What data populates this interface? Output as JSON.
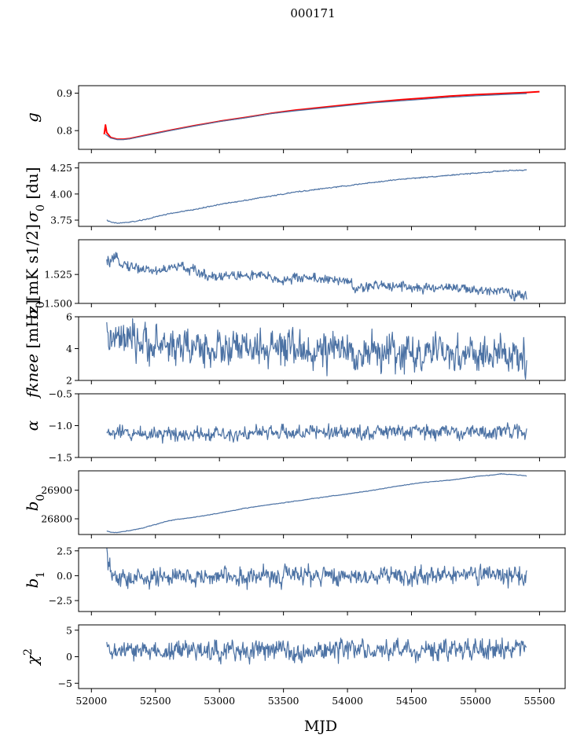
{
  "title": "000171",
  "chart_data": {
    "type": "line",
    "title": "000171",
    "xlabel": "MJD",
    "xlim": [
      51900,
      55700
    ],
    "xticks": [
      52000,
      52500,
      53000,
      53500,
      54000,
      54500,
      55000,
      55500
    ],
    "xtick_labels": [
      "52000",
      "52500",
      "53000",
      "53500",
      "54000",
      "54500",
      "55000",
      "55500"
    ],
    "line_color": "#4c72a4",
    "panels": [
      {
        "ylabel": "g",
        "ylim": [
          0.75,
          0.92
        ],
        "yticks": [
          0.8,
          0.9
        ],
        "ytick_labels": [
          "0.8",
          "0.9"
        ],
        "series": [
          {
            "color": "#ff0000",
            "x": [
              52100,
              52110,
              52120,
              52150,
              52200,
              52250,
              52300,
              52400,
              52500,
              52600,
              52800,
              53000,
              53200,
              53400,
              53600,
              53800,
              54000,
              54200,
              54400,
              54600,
              54800,
              55000,
              55200,
              55400,
              55500
            ],
            "y": [
              0.79,
              0.815,
              0.795,
              0.782,
              0.777,
              0.777,
              0.779,
              0.786,
              0.793,
              0.8,
              0.813,
              0.825,
              0.835,
              0.846,
              0.855,
              0.862,
              0.869,
              0.876,
              0.882,
              0.887,
              0.892,
              0.896,
              0.899,
              0.902,
              0.904
            ]
          },
          {
            "color": "#4c72a4",
            "x": [
              52110,
              52150,
              52200,
              52250,
              52300,
              52400,
              52500,
              52600,
              52800,
              53000,
              53200,
              53400,
              53600,
              53800,
              54000,
              54200,
              54400,
              54600,
              54800,
              55000,
              55200,
              55400
            ],
            "y": [
              0.79,
              0.78,
              0.776,
              0.776,
              0.778,
              0.785,
              0.792,
              0.799,
              0.812,
              0.824,
              0.834,
              0.845,
              0.853,
              0.86,
              0.867,
              0.874,
              0.879,
              0.884,
              0.889,
              0.893,
              0.896,
              0.899
            ]
          }
        ]
      },
      {
        "ylabel": "σ0 [du]",
        "ylim": [
          3.69,
          4.3
        ],
        "yticks": [
          3.75,
          4.0,
          4.25
        ],
        "ytick_labels": [
          "3.75",
          "4.00",
          "4.25"
        ],
        "series": [
          {
            "color": "#4c72a4",
            "x": [
              52120,
              52150,
              52200,
              52300,
              52400,
              52500,
              52600,
              52700,
              52800,
              53000,
              53200,
              53400,
              53600,
              53800,
              54000,
              54200,
              54400,
              54600,
              54800,
              55000,
              55200,
              55400
            ],
            "y": [
              3.75,
              3.73,
              3.72,
              3.73,
              3.75,
              3.78,
              3.81,
              3.83,
              3.85,
              3.9,
              3.94,
              3.98,
              4.02,
              4.05,
              4.08,
              4.11,
              4.14,
              4.16,
              4.18,
              4.2,
              4.22,
              4.23
            ],
            "noise": 0.004
          }
        ]
      },
      {
        "ylabel": "σ0[mK s1/2]",
        "ylim": [
          1.5,
          1.555
        ],
        "yticks": [
          1.5,
          1.525
        ],
        "ytick_labels": [
          "1.500",
          "1.525"
        ],
        "series": [
          {
            "color": "#4c72a4",
            "x": [
              52120,
              52200,
              52300,
              52500,
              52700,
              52900,
              53100,
              53300,
              53500,
              53700,
              53900,
              54000,
              54050,
              54200,
              54400,
              54600,
              54800,
              55000,
              55200,
              55300,
              55400
            ],
            "y": [
              1.535,
              1.538,
              1.532,
              1.528,
              1.532,
              1.524,
              1.524,
              1.524,
              1.52,
              1.523,
              1.519,
              1.521,
              1.512,
              1.515,
              1.516,
              1.512,
              1.515,
              1.51,
              1.513,
              1.508,
              1.505
            ],
            "noise": 0.0035
          }
        ]
      },
      {
        "ylabel": "fknee [mHz]",
        "ylim": [
          2,
          6
        ],
        "yticks": [
          2,
          4,
          6
        ],
        "ytick_labels": [
          "2",
          "4",
          "6"
        ],
        "series": [
          {
            "color": "#4c72a4",
            "x": [
              52120,
              52300,
              52600,
              53000,
              53500,
              54000,
              54500,
              55000,
              55400
            ],
            "y": [
              4.6,
              4.4,
              4.2,
              4.0,
              3.9,
              3.8,
              3.7,
              3.6,
              3.5
            ],
            "noise": 0.9
          }
        ]
      },
      {
        "ylabel": "α",
        "ylim": [
          -1.5,
          -0.5
        ],
        "yticks": [
          -1.5,
          -1.0,
          -0.5
        ],
        "ytick_labels": [
          "−1.5",
          "−1.0",
          "−0.5"
        ],
        "series": [
          {
            "color": "#4c72a4",
            "x": [
              52120,
              53000,
              54000,
              55000,
              55400
            ],
            "y": [
              -1.12,
              -1.12,
              -1.1,
              -1.1,
              -1.1
            ],
            "noise": 0.09
          }
        ]
      },
      {
        "ylabel": "b0",
        "ylim": [
          26745,
          26968
        ],
        "yticks": [
          26800,
          26900
        ],
        "ytick_labels": [
          "26800",
          "26900"
        ],
        "series": [
          {
            "color": "#4c72a4",
            "x": [
              52120,
              52150,
              52200,
              52300,
              52400,
              52500,
              52600,
              52700,
              52800,
              53000,
              53200,
              53400,
              53600,
              53800,
              54000,
              54200,
              54400,
              54600,
              54800,
              55000,
              55100,
              55200,
              55300,
              55400
            ],
            "y": [
              26757,
              26753,
              26752,
              26759,
              26768,
              26780,
              26793,
              26800,
              26805,
              26820,
              26837,
              26850,
              26862,
              26875,
              26887,
              26900,
              26915,
              26928,
              26935,
              26948,
              26952,
              26957,
              26955,
              26950
            ],
            "noise": 0.9
          }
        ]
      },
      {
        "ylabel": "b1",
        "ylim": [
          -3.6,
          2.8
        ],
        "yticks": [
          -2.5,
          0.0,
          2.5
        ],
        "ytick_labels": [
          "−2.5",
          "0.0",
          "2.5"
        ],
        "series": [
          {
            "color": "#4c72a4",
            "x": [
              52120,
              52130,
              52160,
              52200,
              52300,
              52500,
              53000,
              53500,
              54000,
              54500,
              55000,
              55400
            ],
            "y": [
              2.2,
              1.0,
              0.1,
              -0.4,
              -0.3,
              -0.2,
              -0.1,
              0.0,
              0.0,
              0.0,
              0.0,
              0.0
            ],
            "noise": 0.75
          }
        ]
      },
      {
        "ylabel": "χ2",
        "ylim": [
          -6,
          6
        ],
        "yticks": [
          -5,
          0,
          5
        ],
        "ytick_labels": [
          "−5",
          "0",
          "5"
        ],
        "series": [
          {
            "color": "#4c72a4",
            "x": [
              52120,
              53000,
              54000,
              55000,
              55400
            ],
            "y": [
              1.0,
              1.2,
              1.2,
              1.2,
              1.5
            ],
            "noise": 1.5
          }
        ]
      }
    ]
  }
}
